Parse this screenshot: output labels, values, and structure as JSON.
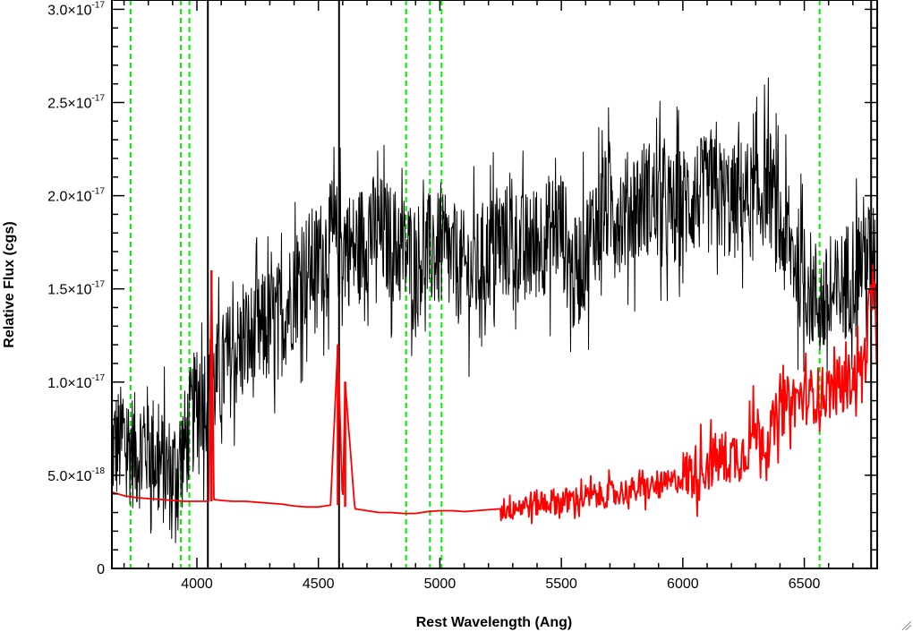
{
  "chart_data": {
    "type": "line",
    "title": "",
    "xlabel": "Rest Wavelength (Ang)",
    "ylabel": "Relative Flux (cgs)",
    "xlim": [
      3650,
      6800
    ],
    "ylim": [
      0,
      3.05e-17
    ],
    "x_ticks": [
      {
        "value": 4000,
        "label": "4000"
      },
      {
        "value": 4500,
        "label": "4500"
      },
      {
        "value": 5000,
        "label": "5000"
      },
      {
        "value": 5500,
        "label": "5500"
      },
      {
        "value": 6000,
        "label": "6000"
      },
      {
        "value": 6500,
        "label": "6500"
      }
    ],
    "y_ticks": [
      {
        "value": 0,
        "mantissa": "0",
        "exponent": ""
      },
      {
        "value": 5e-18,
        "mantissa": "5.0×10",
        "exponent": "-18"
      },
      {
        "value": 1e-17,
        "mantissa": "1.0×10",
        "exponent": "-17"
      },
      {
        "value": 1.5e-17,
        "mantissa": "1.5×10",
        "exponent": "-17"
      },
      {
        "value": 2e-17,
        "mantissa": "2.0×10",
        "exponent": "-17"
      },
      {
        "value": 2.5e-17,
        "mantissa": "2.5×10",
        "exponent": "-17"
      },
      {
        "value": 3e-17,
        "mantissa": "3.0×10",
        "exponent": "-17"
      }
    ],
    "grid": false,
    "series": [
      {
        "color": "#000000",
        "x": [
          3650,
          3700,
          3750,
          3800,
          3850,
          3900,
          3950,
          4000,
          4050,
          4100,
          4150,
          4200,
          4250,
          4300,
          4350,
          4400,
          4450,
          4500,
          4550,
          4600,
          4650,
          4700,
          4750,
          4800,
          4850,
          4900,
          4950,
          5000,
          5050,
          5100,
          5150,
          5200,
          5250,
          5300,
          5350,
          5400,
          5450,
          5500,
          5550,
          5600,
          5650,
          5700,
          5750,
          5800,
          5850,
          5900,
          5950,
          6000,
          6050,
          6100,
          6150,
          6200,
          6250,
          6300,
          6350,
          6400,
          6450,
          6500,
          6550,
          6600,
          6650,
          6700,
          6750,
          6800
        ],
        "y": [
          6.5e-18,
          6.8e-18,
          6.2e-18,
          6.8e-18,
          5.5e-18,
          5e-18,
          6.5e-18,
          9e-18,
          9.5e-18,
          1.05e-17,
          1.15e-17,
          1.2e-17,
          1.25e-17,
          1.3e-17,
          1.35e-17,
          1.5e-17,
          1.6e-17,
          1.65e-17,
          1.75e-17,
          1.75e-17,
          1.7e-17,
          1.8e-17,
          1.8e-17,
          1.75e-17,
          1.7e-17,
          1.65e-17,
          1.7e-17,
          1.7e-17,
          1.65e-17,
          1.6e-17,
          1.6e-17,
          1.7e-17,
          1.75e-17,
          1.75e-17,
          1.7e-17,
          1.75e-17,
          1.8e-17,
          1.85e-17,
          1.55e-17,
          1.7e-17,
          1.9e-17,
          1.95e-17,
          1.9e-17,
          1.95e-17,
          2e-17,
          1.95e-17,
          1.9e-17,
          1.95e-17,
          2e-17,
          2e-17,
          2e-17,
          1.95e-17,
          2e-17,
          1.95e-17,
          2.1e-17,
          1.8e-17,
          1.7e-17,
          1.55e-17,
          1.45e-17,
          1.4e-17,
          1.5e-17,
          1.6e-17,
          1.7e-17,
          1.6e-17
        ],
        "noise": 3.2e-18
      },
      {
        "color": "#ff0000",
        "x": [
          3650,
          3700,
          3750,
          3800,
          3850,
          3900,
          3950,
          4000,
          4050,
          4060,
          4070,
          4100,
          4150,
          4200,
          4250,
          4300,
          4350,
          4400,
          4450,
          4500,
          4550,
          4580,
          4600,
          4610,
          4650,
          4700,
          4750,
          4800,
          4850,
          4900,
          4950,
          5000,
          5050,
          5100,
          5150,
          5200,
          5250,
          5300,
          5350,
          5400,
          5450,
          5500,
          5550,
          5600,
          5650,
          5700,
          5750,
          5800,
          5850,
          5900,
          5950,
          6000,
          6050,
          6100,
          6150,
          6200,
          6250,
          6300,
          6350,
          6400,
          6450,
          6500,
          6550,
          6600,
          6650,
          6700,
          6750,
          6780,
          6800
        ],
        "y": [
          4.1e-18,
          3.9e-18,
          3.8e-18,
          3.75e-18,
          3.7e-18,
          3.65e-18,
          3.6e-18,
          3.6e-18,
          3.6e-18,
          1.6e-17,
          3.7e-18,
          3.65e-18,
          3.6e-18,
          3.6e-18,
          3.55e-18,
          3.5e-18,
          3.45e-18,
          3.35e-18,
          3.3e-18,
          3.3e-18,
          3.4e-18,
          1.2e-17,
          3.3e-18,
          1e-17,
          3.2e-18,
          3.1e-18,
          3e-18,
          3e-18,
          2.95e-18,
          2.95e-18,
          3.05e-18,
          3.1e-18,
          3.1e-18,
          3.05e-18,
          3.1e-18,
          3.15e-18,
          3.2e-18,
          3.3e-18,
          3.4e-18,
          3.5e-18,
          3.6e-18,
          3.6e-18,
          3.7e-18,
          3.8e-18,
          3.9e-18,
          4e-18,
          4.1e-18,
          4.2e-18,
          4.3e-18,
          4.4e-18,
          4.6e-18,
          4.9e-18,
          5.2e-18,
          5.6e-18,
          5.9e-18,
          6e-18,
          6.2e-18,
          7.5e-18,
          6.8e-18,
          8.5e-18,
          9e-18,
          9.2e-18,
          9.3e-18,
          9.5e-18,
          9.8e-18,
          1.02e-17,
          1.12e-17,
          1.55e-17,
          1.15e-17
        ],
        "noise": 6e-19,
        "noise_from_x": 5250
      }
    ],
    "vertical_lines": [
      {
        "x": 3727,
        "style": "dashed",
        "color": "#00ee00"
      },
      {
        "x": 3934,
        "style": "dashed",
        "color": "#00ee00"
      },
      {
        "x": 3969,
        "style": "dashed",
        "color": "#00ee00"
      },
      {
        "x": 4861,
        "style": "dashed",
        "color": "#00ee00"
      },
      {
        "x": 4959,
        "style": "dashed",
        "color": "#00ee00"
      },
      {
        "x": 5007,
        "style": "dashed",
        "color": "#00ee00"
      },
      {
        "x": 6563,
        "style": "dashed",
        "color": "#00ee00"
      },
      {
        "x": 4045,
        "style": "solid",
        "color": "#000000"
      },
      {
        "x": 4585,
        "style": "solid",
        "color": "#000000"
      },
      {
        "x": 6775,
        "style": "solid",
        "color": "#000000"
      }
    ]
  }
}
